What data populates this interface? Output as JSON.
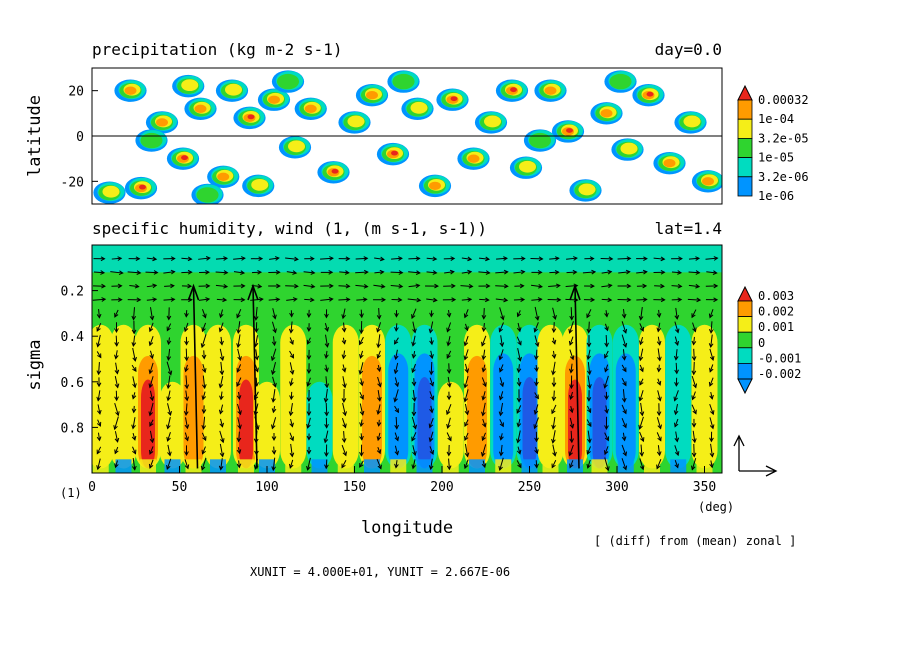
{
  "chart_data": [
    {
      "type": "heatmap",
      "title": "precipitation (kg m-2 s-1)",
      "title_right": "day=0.0",
      "ylabel": "latitude",
      "xlim": [
        0,
        360
      ],
      "ylim": [
        -30,
        30
      ],
      "y_ticks": [
        "20",
        "0",
        "-20"
      ],
      "y_tick_values": [
        20,
        0,
        -20
      ],
      "zero_line": true,
      "legend": {
        "labels": [
          "0.00032",
          "1e-04",
          "3.2e-05",
          "1e-05",
          "3.2e-06",
          "1e-06"
        ],
        "colors": [
          "#e8261c",
          "#ff9b00",
          "#f5ee18",
          "#2fd42f",
          "#00dcc0",
          "#0094ff"
        ]
      },
      "blobs": [
        {
          "lon": 10,
          "lat": -25,
          "level": 3
        },
        {
          "lon": 22,
          "lat": 20,
          "level": 4
        },
        {
          "lon": 28,
          "lat": -23,
          "level": 5
        },
        {
          "lon": 40,
          "lat": 6,
          "level": 4
        },
        {
          "lon": 52,
          "lat": -10,
          "level": 5
        },
        {
          "lon": 55,
          "lat": 22,
          "level": 3
        },
        {
          "lon": 62,
          "lat": 12,
          "level": 4
        },
        {
          "lon": 75,
          "lat": -18,
          "level": 4
        },
        {
          "lon": 80,
          "lat": 20,
          "level": 3
        },
        {
          "lon": 90,
          "lat": 8,
          "level": 5
        },
        {
          "lon": 95,
          "lat": -22,
          "level": 3
        },
        {
          "lon": 104,
          "lat": 16,
          "level": 4
        },
        {
          "lon": 116,
          "lat": -5,
          "level": 3
        },
        {
          "lon": 125,
          "lat": 12,
          "level": 4
        },
        {
          "lon": 138,
          "lat": -16,
          "level": 5
        },
        {
          "lon": 150,
          "lat": 6,
          "level": 3
        },
        {
          "lon": 160,
          "lat": 18,
          "level": 4
        },
        {
          "lon": 172,
          "lat": -8,
          "level": 5
        },
        {
          "lon": 186,
          "lat": 12,
          "level": 3
        },
        {
          "lon": 196,
          "lat": -22,
          "level": 4
        },
        {
          "lon": 206,
          "lat": 16,
          "level": 5
        },
        {
          "lon": 218,
          "lat": -10,
          "level": 4
        },
        {
          "lon": 228,
          "lat": 6,
          "level": 3
        },
        {
          "lon": 240,
          "lat": 20,
          "level": 5
        },
        {
          "lon": 248,
          "lat": -14,
          "level": 3
        },
        {
          "lon": 262,
          "lat": 20,
          "level": 4
        },
        {
          "lon": 272,
          "lat": 2,
          "level": 5
        },
        {
          "lon": 282,
          "lat": -24,
          "level": 3
        },
        {
          "lon": 294,
          "lat": 10,
          "level": 4
        },
        {
          "lon": 306,
          "lat": -6,
          "level": 3
        },
        {
          "lon": 318,
          "lat": 18,
          "level": 5
        },
        {
          "lon": 330,
          "lat": -12,
          "level": 4
        },
        {
          "lon": 342,
          "lat": 6,
          "level": 3
        },
        {
          "lon": 352,
          "lat": -20,
          "level": 4
        },
        {
          "lon": 34,
          "lat": -2,
          "level": 2
        },
        {
          "lon": 112,
          "lat": 24,
          "level": 2
        },
        {
          "lon": 178,
          "lat": 24,
          "level": 2
        },
        {
          "lon": 256,
          "lat": -2,
          "level": 2
        },
        {
          "lon": 302,
          "lat": 24,
          "level": 2
        },
        {
          "lon": 66,
          "lat": -26,
          "level": 2
        }
      ]
    },
    {
      "type": "heatmap",
      "title": "specific humidity, wind (1, (m s-1, s-1))",
      "title_right": "lat=1.4",
      "xlabel": "longitude",
      "ylabel": "sigma",
      "xlim": [
        0,
        360
      ],
      "ylim": [
        1.0,
        0.0
      ],
      "x_ticks": [
        "0",
        "50",
        "100",
        "150",
        "200",
        "250",
        "300",
        "350"
      ],
      "x_tick_values": [
        0,
        50,
        100,
        150,
        200,
        250,
        300,
        350
      ],
      "y_ticks": [
        "0.2",
        "0.4",
        "0.6",
        "0.8"
      ],
      "y_tick_values": [
        0.2,
        0.4,
        0.6,
        0.8
      ],
      "x_unit_label": "(deg)",
      "corner_label": "(1)",
      "legend": {
        "labels": [
          "0.003",
          "0.002",
          "0.001",
          "0",
          "-0.001",
          "-0.002"
        ],
        "colors": [
          "#e8261c",
          "#ff9b00",
          "#f5ee18",
          "#2fd42f",
          "#00dcc0",
          "#0094ff",
          "#1e5ae6"
        ]
      },
      "columns": [
        {
          "lon": 5,
          "value": 0.0015
        },
        {
          "lon": 18,
          "value": 0.001
        },
        {
          "lon": 32,
          "value": 0.0025
        },
        {
          "lon": 46,
          "value": 0.0005
        },
        {
          "lon": 58,
          "value": 0.002
        },
        {
          "lon": 72,
          "value": 0.001
        },
        {
          "lon": 88,
          "value": 0.0025
        },
        {
          "lon": 100,
          "value": 0.0005
        },
        {
          "lon": 115,
          "value": 0.0015
        },
        {
          "lon": 130,
          "value": -0.0005
        },
        {
          "lon": 145,
          "value": 0.001
        },
        {
          "lon": 160,
          "value": 0.002
        },
        {
          "lon": 175,
          "value": -0.0015
        },
        {
          "lon": 190,
          "value": -0.002
        },
        {
          "lon": 205,
          "value": 0.0005
        },
        {
          "lon": 220,
          "value": 0.002
        },
        {
          "lon": 235,
          "value": -0.0015
        },
        {
          "lon": 250,
          "value": -0.002
        },
        {
          "lon": 262,
          "value": 0.001
        },
        {
          "lon": 276,
          "value": 0.0025
        },
        {
          "lon": 290,
          "value": -0.002
        },
        {
          "lon": 305,
          "value": -0.0015
        },
        {
          "lon": 320,
          "value": 0.001
        },
        {
          "lon": 335,
          "value": -0.001
        },
        {
          "lon": 350,
          "value": 0.0015
        }
      ]
    }
  ],
  "reference_arrow": "wind reference vector",
  "footer": {
    "note": "[ (diff) from (mean) zonal ]",
    "units": "XUNIT = 4.000E+01, YUNIT = 2.667E-06"
  }
}
